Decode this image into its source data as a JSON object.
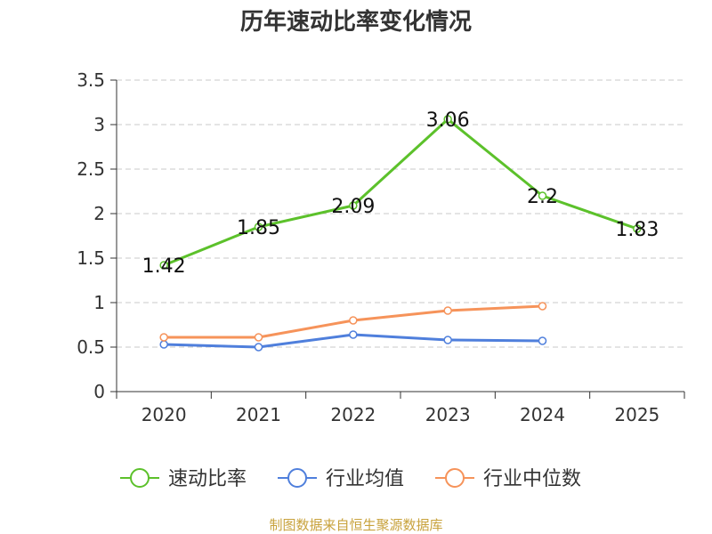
{
  "chart_data": {
    "type": "line",
    "title": "历年速动比率变化情况",
    "categories": [
      "2020",
      "2021",
      "2022",
      "2023",
      "2024",
      "2025"
    ],
    "y_ticks": [
      "0",
      "0.5",
      "1",
      "1.5",
      "2",
      "2.5",
      "3",
      "3.5"
    ],
    "ylim": [
      0,
      3.5
    ],
    "grid": true,
    "legend_position": "bottom",
    "series": [
      {
        "name": "速动比率",
        "color": "#5cc12b",
        "values": [
          1.42,
          1.85,
          2.09,
          3.06,
          2.2,
          1.83
        ],
        "labels": [
          "1.42",
          "1.85",
          "2.09",
          "3.06",
          "2.2",
          "1.83"
        ]
      },
      {
        "name": "行业均值",
        "color": "#4f7fdc",
        "values": [
          0.53,
          0.5,
          0.64,
          0.58,
          0.57,
          null
        ]
      },
      {
        "name": "行业中位数",
        "color": "#f6935a",
        "values": [
          0.61,
          0.61,
          0.8,
          0.91,
          0.96,
          null
        ]
      }
    ]
  },
  "source": "制图数据来自恒生聚源数据库"
}
